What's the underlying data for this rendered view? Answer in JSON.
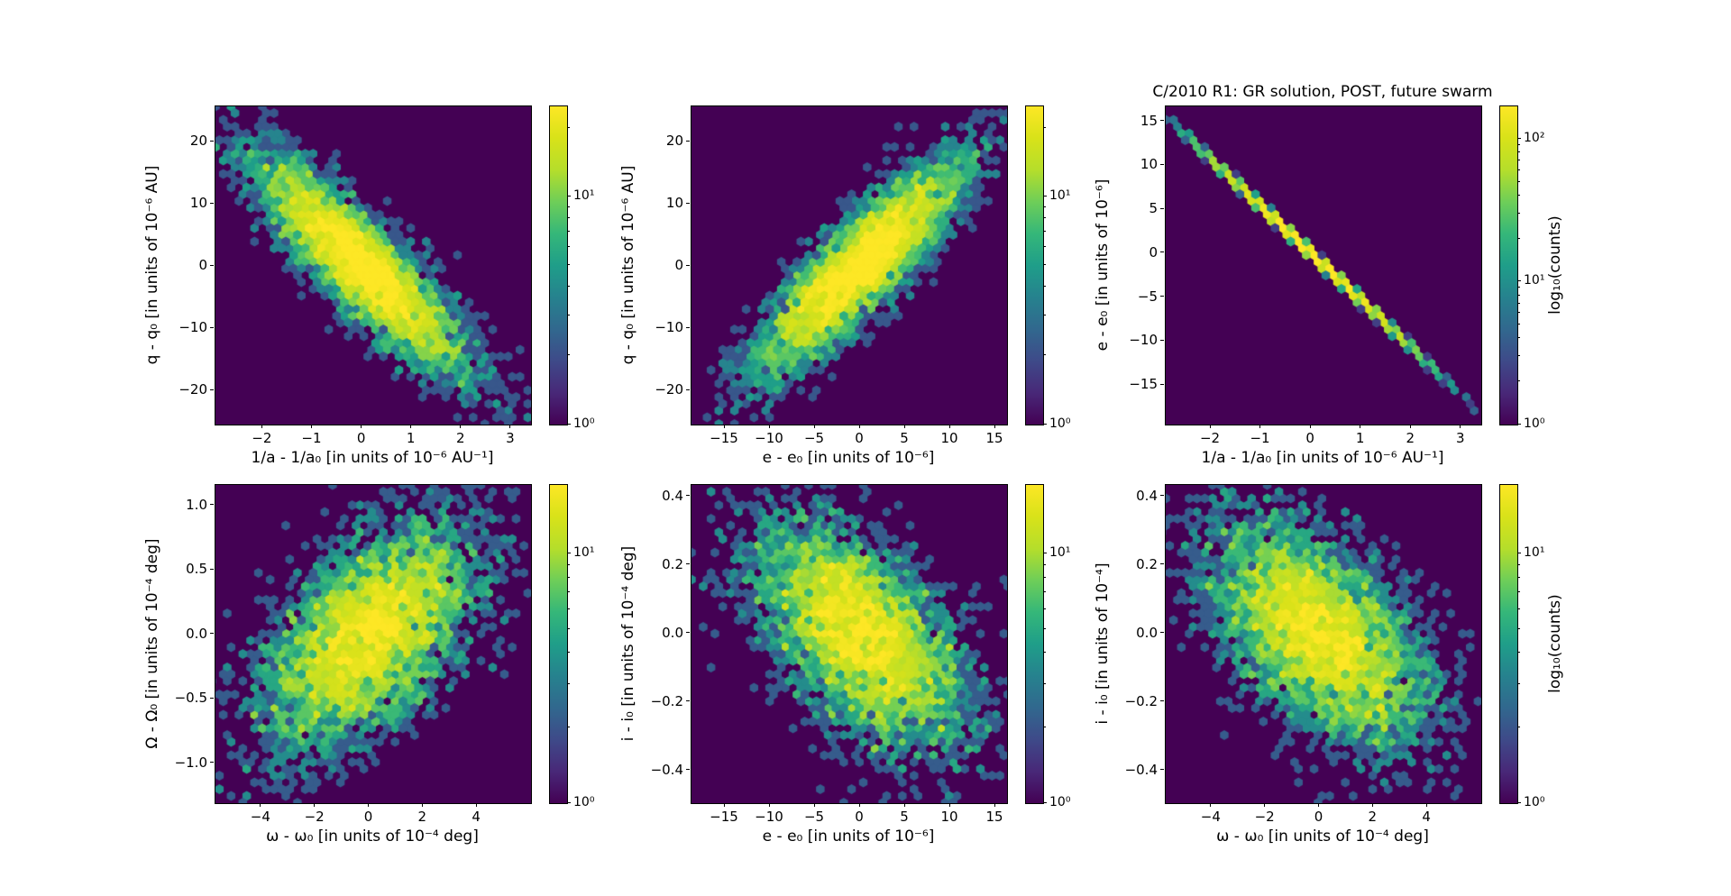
{
  "title": "C/2010 R1: GR solution, POST, future swarm",
  "colors": {
    "background": "#ffffff",
    "plot_background": "#440154",
    "axis": "#000000",
    "colormap": "viridis",
    "colormap_stops": [
      "#440154",
      "#482878",
      "#3e4a89",
      "#31688e",
      "#26828e",
      "#1f9e89",
      "#35b779",
      "#6ece58",
      "#b5de2b",
      "#d8e219",
      "#fde725"
    ]
  },
  "chart_data": [
    {
      "id": "panel-q-q0-vs-1a-1a0",
      "position": "top-left",
      "type": "hexbin",
      "xlabel": "1/a - 1/a₀ [in units of 10⁻⁶ AU⁻¹]",
      "ylabel": "q - q₀ [in units of 10⁻⁶ AU]",
      "xlim": [
        -2.95,
        3.4
      ],
      "ylim": [
        -25.5,
        25.7
      ],
      "xticks": [
        -2,
        -1,
        0,
        1,
        2,
        3
      ],
      "xtick_labels": [
        "−2",
        "−1",
        "0",
        "1",
        "2",
        "3"
      ],
      "yticks": [
        -20,
        -10,
        0,
        10,
        20
      ],
      "ytick_labels": [
        "−20",
        "−10",
        "0",
        "10",
        "20"
      ],
      "grid": false,
      "distribution": {
        "n": 5000,
        "center": [
          0,
          0
        ],
        "sigma_x": 1.02,
        "sigma_y": 8.4,
        "rho": -0.87,
        "shape": "bivariate-gaussian",
        "correlation": "strong-negative"
      },
      "colorbar": {
        "scale": "log",
        "vmin": 1,
        "vmax": 25,
        "tick_values": [
          1,
          10
        ],
        "tick_labels": [
          "10⁰",
          "10¹"
        ],
        "label": ""
      }
    },
    {
      "id": "panel-q-q0-vs-e-e0",
      "position": "top-middle",
      "type": "hexbin",
      "xlabel": "e - e₀ [in units of 10⁻⁶]",
      "ylabel": "q - q₀ [in units of 10⁻⁶ AU]",
      "xlim": [
        -18.7,
        16.3
      ],
      "ylim": [
        -25.5,
        25.7
      ],
      "xticks": [
        -15,
        -10,
        -5,
        0,
        5,
        10,
        15
      ],
      "xtick_labels": [
        "−15",
        "−10",
        "−5",
        "0",
        "5",
        "10",
        "15"
      ],
      "yticks": [
        -20,
        -10,
        0,
        10,
        20
      ],
      "ytick_labels": [
        "−20",
        "−10",
        "0",
        "10",
        "20"
      ],
      "grid": false,
      "distribution": {
        "n": 5000,
        "center": [
          0,
          0
        ],
        "sigma_x": 5.6,
        "sigma_y": 8.4,
        "rho": 0.87,
        "shape": "bivariate-gaussian",
        "correlation": "strong-positive"
      },
      "colorbar": {
        "scale": "log",
        "vmin": 1,
        "vmax": 25,
        "tick_values": [
          1,
          10
        ],
        "tick_labels": [
          "10⁰",
          "10¹"
        ],
        "label": ""
      }
    },
    {
      "id": "panel-e-e0-vs-1a-1a0",
      "position": "top-right",
      "type": "hexbin",
      "xlabel": "1/a - 1/a₀ [in units of 10⁻⁶ AU⁻¹]",
      "ylabel": "e - e₀ [in units of 10⁻⁶]",
      "xlim": [
        -2.9,
        3.4
      ],
      "ylim": [
        -19.5,
        16.7
      ],
      "xticks": [
        -2,
        -1,
        0,
        1,
        2,
        3
      ],
      "xtick_labels": [
        "−2",
        "−1",
        "0",
        "1",
        "2",
        "3"
      ],
      "yticks": [
        -15,
        -10,
        -5,
        0,
        5,
        10,
        15
      ],
      "ytick_labels": [
        "−15",
        "−10",
        "−5",
        "0",
        "5",
        "10",
        "15"
      ],
      "grid": false,
      "distribution": {
        "n": 5000,
        "center": [
          0,
          0
        ],
        "sigma_x": 1.02,
        "slope": -5.35,
        "noise": 0.12,
        "shape": "tight-line",
        "correlation": "near-perfect-negative"
      },
      "colorbar": {
        "scale": "log",
        "vmin": 1,
        "vmax": 170,
        "tick_values": [
          1,
          10,
          100
        ],
        "tick_labels": [
          "10⁰",
          "10¹",
          "10²"
        ],
        "label": "log₁₀(counts)"
      }
    },
    {
      "id": "panel-Omega-Omega0-vs-omega-omega0",
      "position": "bottom-left",
      "type": "hexbin",
      "xlabel": "ω - ω₀ [in units of 10⁻⁴ deg]",
      "ylabel": "Ω - Ω₀ [in units of 10⁻⁴ deg]",
      "xlim": [
        -5.7,
        6.0
      ],
      "ylim": [
        -1.31,
        1.16
      ],
      "xticks": [
        -4,
        -2,
        0,
        2,
        4
      ],
      "xtick_labels": [
        "−4",
        "−2",
        "0",
        "2",
        "4"
      ],
      "yticks": [
        -1.0,
        -0.5,
        0.0,
        0.5,
        1.0
      ],
      "ytick_labels": [
        "−1.0",
        "−0.5",
        "0.0",
        "0.5",
        "1.0"
      ],
      "grid": false,
      "distribution": {
        "n": 5000,
        "center": [
          0,
          0
        ],
        "sigma_x": 1.95,
        "sigma_y": 0.43,
        "rho": 0.55,
        "shape": "bivariate-gaussian",
        "correlation": "moderate-positive"
      },
      "colorbar": {
        "scale": "log",
        "vmin": 1,
        "vmax": 19,
        "tick_values": [
          1,
          10
        ],
        "tick_labels": [
          "10⁰",
          "10¹"
        ],
        "label": ""
      }
    },
    {
      "id": "panel-i-i0-vs-e-e0",
      "position": "bottom-middle",
      "type": "hexbin",
      "xlabel": "e - e₀ [in units of 10⁻⁶]",
      "ylabel": "i - i₀ [in units of 10⁻⁴ deg]",
      "xlim": [
        -18.7,
        16.3
      ],
      "ylim": [
        -0.495,
        0.434
      ],
      "xticks": [
        -15,
        -10,
        -5,
        0,
        5,
        10,
        15
      ],
      "xtick_labels": [
        "−15",
        "−10",
        "−5",
        "0",
        "5",
        "10",
        "15"
      ],
      "yticks": [
        -0.4,
        -0.2,
        0.0,
        0.2,
        0.4
      ],
      "ytick_labels": [
        "−0.4",
        "−0.2",
        "0.0",
        "0.2",
        "0.4"
      ],
      "grid": false,
      "distribution": {
        "n": 5000,
        "center": [
          0,
          0
        ],
        "sigma_x": 5.6,
        "sigma_y": 0.16,
        "rho": -0.55,
        "shape": "bivariate-gaussian",
        "correlation": "moderate-negative"
      },
      "colorbar": {
        "scale": "log",
        "vmin": 1,
        "vmax": 19,
        "tick_values": [
          1,
          10
        ],
        "tick_labels": [
          "10⁰",
          "10¹"
        ],
        "label": ""
      }
    },
    {
      "id": "panel-i-i0-vs-omega-omega0",
      "position": "bottom-right",
      "type": "hexbin",
      "xlabel": "ω - ω₀ [in units of 10⁻⁴ deg]",
      "ylabel": "i - i₀ [in units of 10⁻⁴]",
      "xlim": [
        -5.7,
        6.0
      ],
      "ylim": [
        -0.495,
        0.434
      ],
      "xticks": [
        -4,
        -2,
        0,
        2,
        4
      ],
      "xtick_labels": [
        "−4",
        "−2",
        "0",
        "2",
        "4"
      ],
      "yticks": [
        -0.4,
        -0.2,
        0.0,
        0.2,
        0.4
      ],
      "ytick_labels": [
        "−0.4",
        "−0.2",
        "0.0",
        "0.2",
        "0.4"
      ],
      "grid": false,
      "distribution": {
        "n": 5000,
        "center": [
          0,
          0
        ],
        "sigma_x": 1.95,
        "sigma_y": 0.16,
        "rho": -0.55,
        "shape": "bivariate-gaussian",
        "correlation": "moderate-negative"
      },
      "colorbar": {
        "scale": "log",
        "vmin": 1,
        "vmax": 19,
        "tick_values": [
          1,
          10
        ],
        "tick_labels": [
          "10⁰",
          "10¹"
        ],
        "label": "log₁₀(counts)"
      }
    }
  ]
}
